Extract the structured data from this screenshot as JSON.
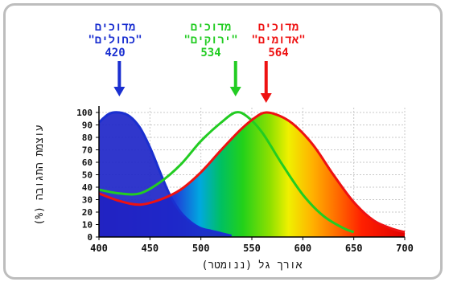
{
  "chart_data": {
    "type": "line",
    "xlabel": "אורך גל (ננומטר)",
    "ylabel": "עוצמת התגובה (%)",
    "xlim": [
      400,
      700
    ],
    "ylim": [
      0,
      100
    ],
    "x_ticks": [
      400,
      450,
      500,
      550,
      600,
      650,
      700
    ],
    "y_ticks": [
      0,
      10,
      20,
      30,
      40,
      50,
      60,
      70,
      80,
      90,
      100
    ],
    "grid": true,
    "background": "visible spectrum gradient under the red curve",
    "series": [
      {
        "name": "מדוכים \"כחולים\"",
        "peak_label": "420",
        "peak_nm": 420,
        "color": "#1a2fd0",
        "fill": "#1e26c8",
        "points": [
          [
            400,
            92
          ],
          [
            410,
            99
          ],
          [
            420,
            100
          ],
          [
            430,
            97
          ],
          [
            440,
            88
          ],
          [
            450,
            72
          ],
          [
            460,
            52
          ],
          [
            470,
            33
          ],
          [
            480,
            20
          ],
          [
            490,
            12
          ],
          [
            500,
            7
          ],
          [
            510,
            5
          ],
          [
            520,
            3
          ],
          [
            530,
            1
          ]
        ]
      },
      {
        "name": "מדוכים \"ירוקים\"",
        "peak_label": "534",
        "peak_nm": 534,
        "color": "#22cc22",
        "points": [
          [
            400,
            38
          ],
          [
            420,
            35
          ],
          [
            440,
            35
          ],
          [
            460,
            44
          ],
          [
            480,
            58
          ],
          [
            500,
            77
          ],
          [
            520,
            92
          ],
          [
            534,
            100
          ],
          [
            545,
            97
          ],
          [
            560,
            84
          ],
          [
            580,
            58
          ],
          [
            600,
            34
          ],
          [
            620,
            17
          ],
          [
            640,
            7
          ],
          [
            650,
            4
          ]
        ]
      },
      {
        "name": "מדוכים \"אדומים\"",
        "peak_label": "564",
        "peak_nm": 564,
        "color": "#ee1111",
        "points": [
          [
            400,
            35
          ],
          [
            420,
            29
          ],
          [
            440,
            26
          ],
          [
            460,
            30
          ],
          [
            480,
            38
          ],
          [
            500,
            52
          ],
          [
            520,
            70
          ],
          [
            540,
            87
          ],
          [
            555,
            97
          ],
          [
            564,
            100
          ],
          [
            575,
            98
          ],
          [
            590,
            91
          ],
          [
            610,
            74
          ],
          [
            630,
            50
          ],
          [
            650,
            28
          ],
          [
            670,
            13
          ],
          [
            690,
            6
          ],
          [
            700,
            4
          ]
        ]
      }
    ]
  }
}
